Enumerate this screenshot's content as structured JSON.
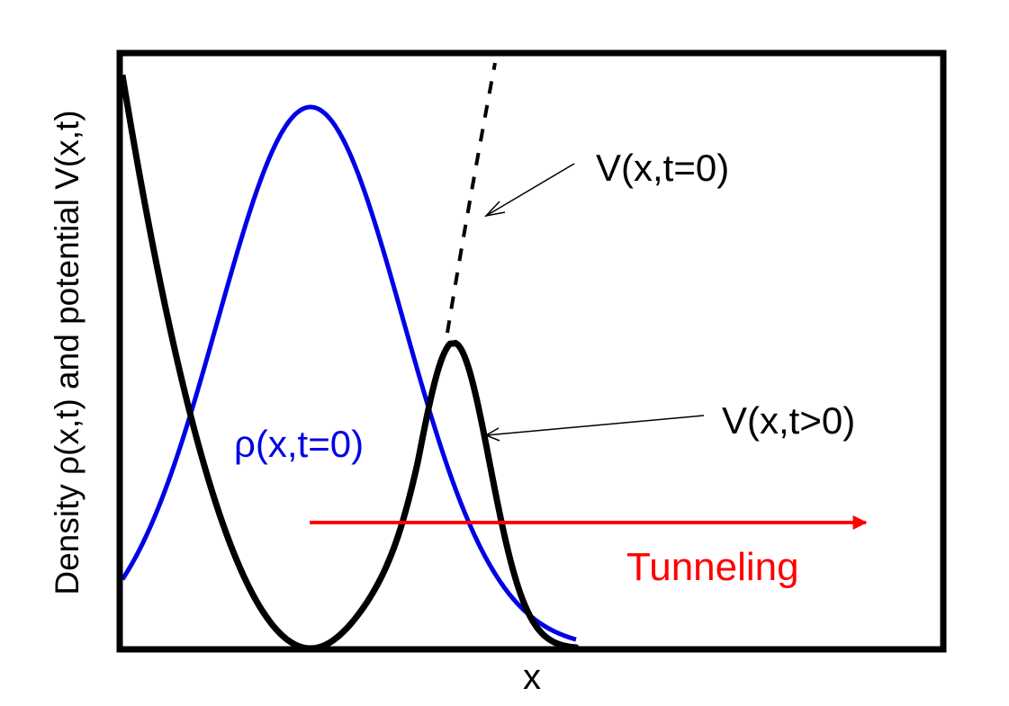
{
  "diagram": {
    "y_axis_label": "Density ρ(x,t) and potential V(x,t)",
    "x_axis_label": "x",
    "annotations": {
      "v_initial": "V(x,t=0)",
      "v_later": "V(x,t>0)",
      "rho_initial": "ρ(x,t=0)",
      "tunneling": "Tunneling"
    },
    "colors": {
      "frame": "#000000",
      "potential": "#000000",
      "density": "#0000e6",
      "tunneling": "#ff0000"
    }
  }
}
